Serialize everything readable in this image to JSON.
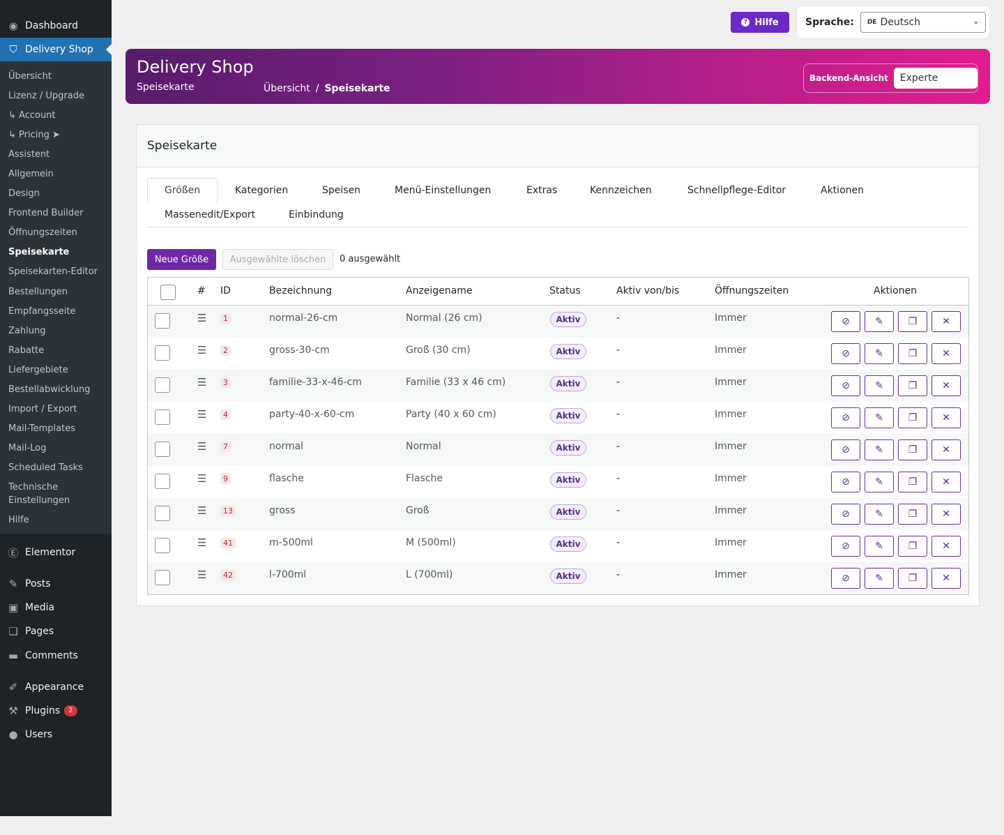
{
  "sidebar": {
    "top": [
      {
        "label": "Dashboard",
        "icon": "dashboard-icon"
      },
      {
        "label": "Delivery Shop",
        "icon": "shopping-bag-icon"
      }
    ],
    "submenu": [
      "Übersicht",
      "Lizenz / Upgrade",
      "↳ Account",
      "↳ Pricing ➤",
      "Assistent",
      "Allgemein",
      "Design",
      "Frontend Builder",
      "Öffnungszeiten",
      "Speisekarte",
      "Speisekarten-Editor",
      "Bestellungen",
      "Empfangsseite",
      "Zahlung",
      "Rabatte",
      "Liefergebiete",
      "Bestellabwicklung",
      "Import / Export",
      "Mail-Templates",
      "Mail-Log",
      "Scheduled Tasks",
      "Technische Einstellungen",
      "Hilfe"
    ],
    "bottom": [
      {
        "label": "Elementor",
        "icon": "elementor-icon"
      },
      {
        "label": "Posts",
        "icon": "pushpin-icon"
      },
      {
        "label": "Media",
        "icon": "media-icon"
      },
      {
        "label": "Pages",
        "icon": "pages-icon"
      },
      {
        "label": "Comments",
        "icon": "comment-icon"
      },
      {
        "label": "Appearance",
        "icon": "brush-icon"
      },
      {
        "label": "Plugins",
        "icon": "plugin-icon",
        "badge": "2"
      },
      {
        "label": "Users",
        "icon": "user-icon"
      }
    ]
  },
  "topbar": {
    "help_label": "Hilfe",
    "language_label": "Sprache:",
    "language_flag": "DE",
    "language_value": "Deutsch"
  },
  "header": {
    "title": "Delivery Shop",
    "subtitle": "Speisekarte",
    "breadcrumb": [
      "Übersicht",
      "/",
      "Speisekarte"
    ],
    "view_label": "Backend-Ansicht",
    "view_value": "Experte"
  },
  "card": {
    "title": "Speisekarte",
    "tabs": [
      "Größen",
      "Kategorien",
      "Speisen",
      "Menü-Einstellungen",
      "Extras",
      "Kennzeichen",
      "Schnellpflege-Editor",
      "Aktionen",
      "Massenedit/Export",
      "Einbindung"
    ],
    "new_button": "Neue Größe",
    "delete_button": "Ausgewählte löschen",
    "selected_count": "0 ausgewählt",
    "columns": [
      "#",
      "ID",
      "Bezeichnung",
      "Anzeigename",
      "Status",
      "Aktiv von/bis",
      "Öffnungszeiten",
      "Aktionen"
    ],
    "rows": [
      {
        "id": "1",
        "name": "normal-26-cm",
        "display": "Normal (26 cm)",
        "status": "Aktiv",
        "active": "-",
        "hours": "Immer"
      },
      {
        "id": "2",
        "name": "gross-30-cm",
        "display": "Groß (30 cm)",
        "status": "Aktiv",
        "active": "-",
        "hours": "Immer"
      },
      {
        "id": "3",
        "name": "familie-33-x-46-cm",
        "display": "Familie (33 x 46 cm)",
        "status": "Aktiv",
        "active": "-",
        "hours": "Immer"
      },
      {
        "id": "4",
        "name": "party-40-x-60-cm",
        "display": "Party (40 x 60 cm)",
        "status": "Aktiv",
        "active": "-",
        "hours": "Immer"
      },
      {
        "id": "7",
        "name": "normal",
        "display": "Normal",
        "status": "Aktiv",
        "active": "-",
        "hours": "Immer"
      },
      {
        "id": "9",
        "name": "flasche",
        "display": "Flasche",
        "status": "Aktiv",
        "active": "-",
        "hours": "Immer"
      },
      {
        "id": "13",
        "name": "gross",
        "display": "Groß",
        "status": "Aktiv",
        "active": "-",
        "hours": "Immer"
      },
      {
        "id": "41",
        "name": "m-500ml",
        "display": "M (500ml)",
        "status": "Aktiv",
        "active": "-",
        "hours": "Immer"
      },
      {
        "id": "42",
        "name": "l-700ml",
        "display": "L (700ml)",
        "status": "Aktiv",
        "active": "-",
        "hours": "Immer"
      }
    ],
    "row_actions": [
      {
        "name": "hide-icon",
        "glyph": "⊘"
      },
      {
        "name": "edit-icon",
        "glyph": "✎"
      },
      {
        "name": "copy-icon",
        "glyph": "❐"
      },
      {
        "name": "delete-icon",
        "glyph": "✕"
      }
    ]
  },
  "colors": {
    "accent": "#6d28a4",
    "sidebar_bg": "#1d2327",
    "sidebar_active": "#2271b1",
    "banner_start": "#581c6b",
    "banner_end": "#e01d8e"
  }
}
